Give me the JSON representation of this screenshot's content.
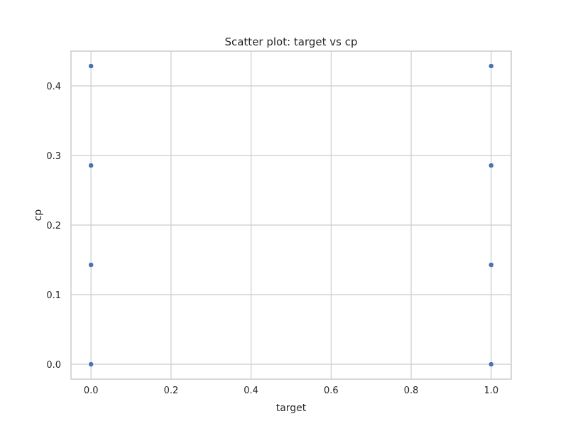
{
  "chart_data": {
    "type": "scatter",
    "title": "Scatter plot: target vs cp",
    "xlabel": "target",
    "ylabel": "cp",
    "xlim": [
      -0.05,
      1.05
    ],
    "ylim": [
      -0.0214,
      0.45
    ],
    "xticks": [
      0.0,
      0.2,
      0.4,
      0.6,
      0.8,
      1.0
    ],
    "xtick_labels": [
      "0.0",
      "0.2",
      "0.4",
      "0.6",
      "0.8",
      "1.0"
    ],
    "yticks": [
      0.0,
      0.1,
      0.2,
      0.3,
      0.4
    ],
    "ytick_labels": [
      "0.0",
      "0.1",
      "0.2",
      "0.3",
      "0.4"
    ],
    "grid": true,
    "colors": {
      "point": "#4c72b0",
      "grid": "#cccccc",
      "frame": "#cccccc",
      "text": "#262626",
      "background": "#ffffff"
    },
    "series": [
      {
        "points": [
          {
            "x": 0.0,
            "y": 0.0
          },
          {
            "x": 0.0,
            "y": 0.142857
          },
          {
            "x": 0.0,
            "y": 0.285714
          },
          {
            "x": 0.0,
            "y": 0.428571
          },
          {
            "x": 1.0,
            "y": 0.0
          },
          {
            "x": 1.0,
            "y": 0.142857
          },
          {
            "x": 1.0,
            "y": 0.285714
          },
          {
            "x": 1.0,
            "y": 0.428571
          }
        ]
      }
    ]
  }
}
